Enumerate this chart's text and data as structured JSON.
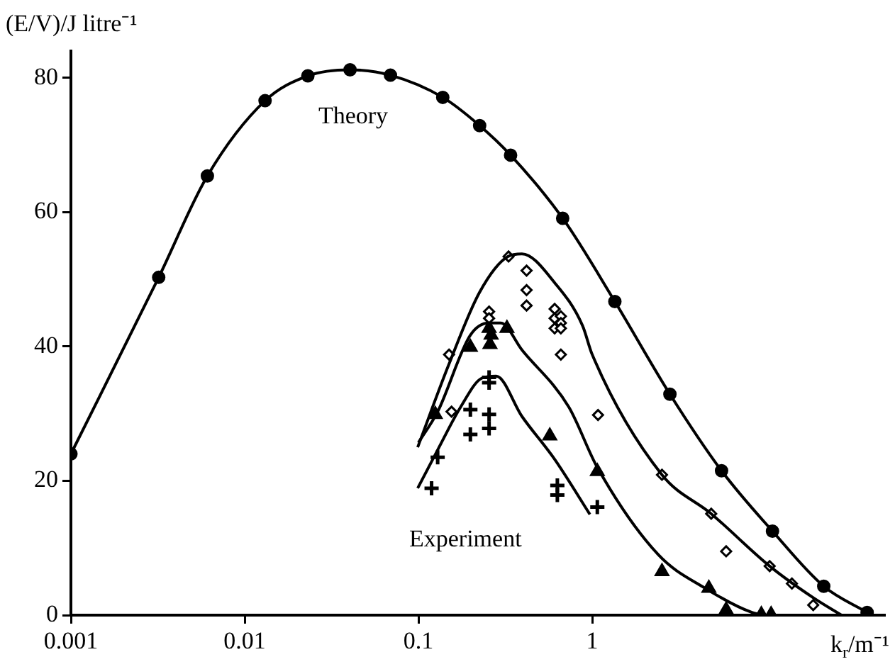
{
  "chart_data": {
    "type": "line",
    "ylabel": "(E/V)/J litre⁻¹",
    "xlabel": "k$_{r}$/m⁻¹",
    "log": "x",
    "xlim": [
      0.001,
      48
    ],
    "xticks": [
      0.001,
      0.01,
      0.1,
      1
    ],
    "ylim": [
      0,
      84
    ],
    "yticks": [
      0,
      20,
      40,
      60,
      80
    ],
    "grid": false,
    "legend": false,
    "annotations": [
      "Theory",
      "Experiment"
    ],
    "series": [
      {
        "marker": "circle",
        "color": "#000000",
        "x": [
          0.001,
          0.0032,
          0.0061,
          0.0131,
          0.0231,
          0.0404,
          0.069,
          0.138,
          0.225,
          0.339,
          0.676,
          1.35,
          2.8,
          5.55,
          10.9,
          21.5,
          38.2
        ],
        "values": [
          24,
          50.3,
          65.4,
          76.6,
          80.3,
          81.2,
          80.4,
          77.1,
          72.9,
          68.5,
          59.1,
          46.7,
          32.9,
          21.5,
          12.5,
          4.3,
          0.4
        ]
      },
      {
        "marker": "none",
        "color": "#000000",
        "x": [
          0.099,
          0.15,
          0.225,
          0.327,
          0.394,
          0.608,
          0.88,
          1.0,
          2.52,
          4.84,
          10.5,
          18.7,
          27.2
        ],
        "values": [
          25,
          37.4,
          48.1,
          53.4,
          53.8,
          49.5,
          43.1,
          38.8,
          20.9,
          15.1,
          7.3,
          2.6,
          0
        ]
      },
      {
        "marker": "none",
        "color": "#000000",
        "x": [
          0.1,
          0.129,
          0.199,
          0.255,
          0.298,
          0.394,
          0.733,
          1.07,
          2.4,
          4.47,
          8.3,
          10
        ],
        "values": [
          25.7,
          30.3,
          41.7,
          43.5,
          43.5,
          39.5,
          31,
          22,
          9,
          4,
          0.4,
          0
        ]
      },
      {
        "marker": "none",
        "color": "#000000",
        "x": [
          0.099,
          0.129,
          0.175,
          0.232,
          0.28,
          0.394,
          0.608,
          0.97
        ],
        "values": [
          18.9,
          24.6,
          31,
          35.3,
          35.6,
          29.6,
          23.2,
          15
        ]
      },
      {
        "type": "scatter",
        "marker": "diamond",
        "color": "#000000",
        "x": [
          0.15,
          0.155,
          0.255,
          0.255,
          0.33,
          0.419,
          0.419,
          0.419,
          0.608,
          0.608,
          0.608,
          0.66,
          0.66,
          0.66,
          0.66,
          1.08,
          2.52,
          4.84,
          5.9,
          10.5,
          14.1,
          18.7
        ],
        "values": [
          38.8,
          30.3,
          45.2,
          44.2,
          53.4,
          51.3,
          48.4,
          46.1,
          45.6,
          44.2,
          42.7,
          44.5,
          43.5,
          42.7,
          38.8,
          29.8,
          20.9,
          15.1,
          9.5,
          7.3,
          4.7,
          1.5
        ]
      },
      {
        "type": "scatter",
        "marker": "triangle",
        "color": "#000000",
        "x": [
          0.125,
          0.199,
          0.255,
          0.258,
          0.262,
          0.323,
          0.57,
          1.07,
          2.52,
          4.69,
          5.9,
          9.4,
          10.7
        ],
        "values": [
          29.9,
          39.9,
          42.7,
          40.3,
          41.7,
          42.7,
          26.7,
          21.4,
          6.5,
          4,
          0.8,
          0.1,
          0.1
        ]
      },
      {
        "type": "scatter",
        "marker": "cross",
        "color": "#000000",
        "x": [
          0.119,
          0.129,
          0.199,
          0.199,
          0.255,
          0.255,
          0.255,
          0.255,
          0.63,
          0.63,
          1.07
        ],
        "values": [
          18.9,
          23.5,
          30.6,
          26.9,
          29.9,
          27.8,
          35.4,
          34.6,
          19.3,
          17.9,
          16.1
        ]
      }
    ]
  }
}
